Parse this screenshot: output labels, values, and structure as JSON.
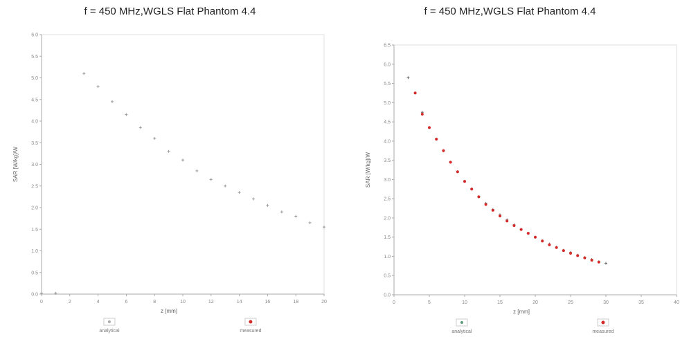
{
  "chart_data": [
    {
      "type": "scatter",
      "title": "f = 450 MHz,WGLS Flat Phantom 4.4",
      "xlabel": "z [mm]",
      "ylabel": "SAR [W/kg]/W",
      "xlim": [
        0,
        20
      ],
      "ylim": [
        0,
        6
      ],
      "xticks": [
        "0",
        "2",
        "4",
        "6",
        "8",
        "10",
        "12",
        "14",
        "16",
        "18",
        "20"
      ],
      "yticks": [
        "0.0",
        "0.5",
        "1.0",
        "1.5",
        "2.0",
        "2.5",
        "3.0",
        "3.5",
        "4.0",
        "4.5",
        "5.0",
        "5.5",
        "6.0"
      ],
      "grid": false,
      "legend_placement": "bottom",
      "series": [
        {
          "name": "analytical",
          "color": "#999999",
          "x": [
            0,
            1,
            3,
            4,
            5,
            6,
            7,
            8,
            9,
            10,
            11,
            12,
            13,
            14,
            15,
            16,
            17,
            18,
            19,
            20
          ],
          "y": [
            0.02,
            0.02,
            5.1,
            4.8,
            4.45,
            4.15,
            3.85,
            3.6,
            3.3,
            3.1,
            2.85,
            2.65,
            2.5,
            2.35,
            2.2,
            2.05,
            1.9,
            1.8,
            1.65,
            1.55
          ]
        },
        {
          "name": "measured",
          "color": "#d42a2a",
          "x": [],
          "y": []
        }
      ]
    },
    {
      "type": "scatter",
      "title": "f = 450 MHz,WGLS Flat Phantom 4.4",
      "xlabel": "z [mm]",
      "ylabel": "SAR [W/kg]/W",
      "xlim": [
        0,
        40
      ],
      "ylim": [
        0,
        6.5
      ],
      "xticks": [
        "0",
        "5",
        "10",
        "15",
        "20",
        "25",
        "30",
        "35",
        "40"
      ],
      "yticks": [
        "0.0",
        "0.5",
        "1.0",
        "1.5",
        "2.0",
        "2.5",
        "3.0",
        "3.5",
        "4.0",
        "4.5",
        "5.0",
        "5.5",
        "6.0",
        "6.5"
      ],
      "grid": false,
      "legend_placement": "bottom",
      "series": [
        {
          "name": "analytical",
          "color": "#666666",
          "x": [
            2,
            3,
            4,
            5,
            6,
            7,
            8,
            9,
            10,
            11,
            12,
            13,
            14,
            15,
            16,
            17,
            18,
            19,
            20,
            21,
            22,
            23,
            24,
            25,
            26,
            27,
            28,
            29,
            30
          ],
          "y": [
            5.65,
            5.25,
            4.75,
            4.35,
            4.05,
            3.75,
            3.45,
            3.2,
            2.95,
            2.75,
            2.55,
            2.38,
            2.22,
            2.08,
            1.95,
            1.82,
            1.7,
            1.6,
            1.5,
            1.4,
            1.32,
            1.24,
            1.16,
            1.1,
            1.03,
            0.97,
            0.92,
            0.86,
            0.82
          ]
        },
        {
          "name": "measured",
          "color": "#d42a2a",
          "x": [
            3,
            4,
            5,
            6,
            7,
            8,
            9,
            10,
            11,
            12,
            13,
            14,
            15,
            16,
            17,
            18,
            19,
            20,
            21,
            22,
            23,
            24,
            25,
            26,
            27,
            28,
            29
          ],
          "y": [
            5.25,
            4.7,
            4.35,
            4.05,
            3.75,
            3.45,
            3.2,
            2.95,
            2.75,
            2.55,
            2.35,
            2.2,
            2.05,
            1.92,
            1.8,
            1.7,
            1.6,
            1.5,
            1.4,
            1.3,
            1.23,
            1.15,
            1.08,
            1.02,
            0.96,
            0.9,
            0.85
          ]
        }
      ]
    }
  ]
}
